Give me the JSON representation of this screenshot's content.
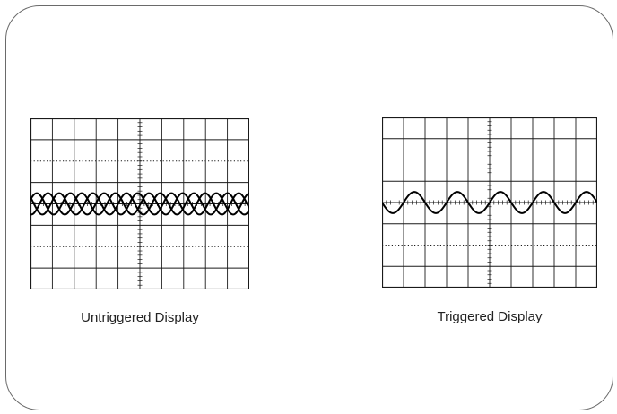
{
  "panels": [
    {
      "id": "untriggered",
      "caption": "Untriggered Display",
      "trace_count": 3,
      "cycles_per_screen": 6.5,
      "amplitude_divisions": 0.5
    },
    {
      "id": "triggered",
      "caption": "Triggered Display",
      "trace_count": 1,
      "cycles_per_screen": 5,
      "amplitude_divisions": 0.5
    }
  ],
  "graticule": {
    "columns": 10,
    "rows": 8
  },
  "colors": {
    "frame": "#6a6a6a",
    "grid": "#1a1a1a",
    "trace": "#000000",
    "caption": "#222222"
  }
}
